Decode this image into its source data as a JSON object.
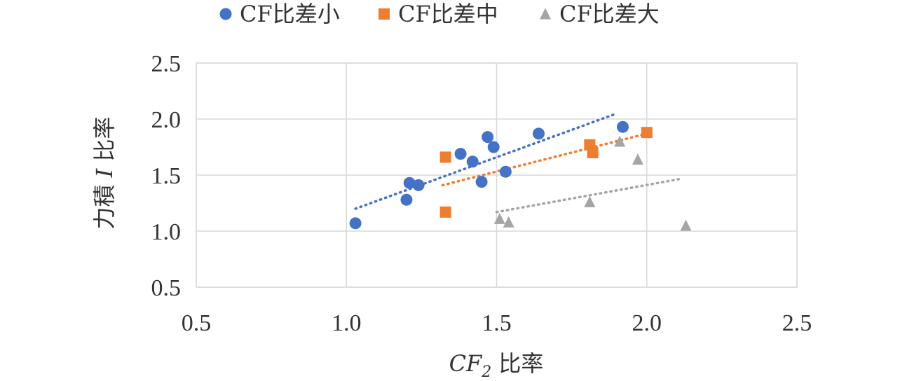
{
  "chart_data": {
    "type": "scatter",
    "title": "",
    "xlabel": {
      "italic_part": "CF",
      "subscript": "2",
      "suffix": " 比率"
    },
    "ylabel": {
      "prefix": "力積 ",
      "italic_part": "I",
      "suffix": " 比率"
    },
    "xlim": [
      0.5,
      2.5
    ],
    "ylim": [
      0.5,
      2.5
    ],
    "xticks": [
      "0.5",
      "1.0",
      "1.5",
      "2.0",
      "2.5"
    ],
    "yticks": [
      "0.5",
      "1.0",
      "1.5",
      "2.0",
      "2.5"
    ],
    "grid": true,
    "legend_position": "top",
    "series": [
      {
        "name": "CF比差小",
        "marker": "circle",
        "color": "#4472c4",
        "points": [
          [
            1.03,
            1.07
          ],
          [
            1.2,
            1.28
          ],
          [
            1.21,
            1.43
          ],
          [
            1.24,
            1.41
          ],
          [
            1.38,
            1.69
          ],
          [
            1.42,
            1.62
          ],
          [
            1.45,
            1.44
          ],
          [
            1.47,
            1.84
          ],
          [
            1.49,
            1.75
          ],
          [
            1.53,
            1.53
          ],
          [
            1.64,
            1.87
          ],
          [
            1.92,
            1.93
          ]
        ],
        "trendline": [
          [
            1.03,
            1.2
          ],
          [
            1.9,
            2.05
          ]
        ]
      },
      {
        "name": "CF比差中",
        "marker": "square",
        "color": "#ed7d31",
        "points": [
          [
            1.33,
            1.66
          ],
          [
            1.33,
            1.17
          ],
          [
            1.81,
            1.77
          ],
          [
            1.82,
            1.7
          ],
          [
            2.0,
            1.88
          ]
        ],
        "trendline": [
          [
            1.32,
            1.41
          ],
          [
            2.0,
            1.87
          ]
        ]
      },
      {
        "name": "CF比差大",
        "marker": "triangle",
        "color": "#a5a5a5",
        "points": [
          [
            1.51,
            1.11
          ],
          [
            1.54,
            1.08
          ],
          [
            1.81,
            1.26
          ],
          [
            1.91,
            1.8
          ],
          [
            1.97,
            1.64
          ],
          [
            2.13,
            1.05
          ]
        ],
        "trendline": [
          [
            1.5,
            1.17
          ],
          [
            2.12,
            1.47
          ]
        ]
      }
    ]
  }
}
